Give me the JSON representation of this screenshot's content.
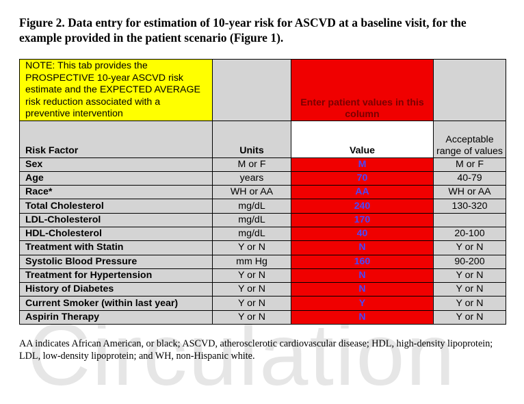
{
  "watermark": "Circulation",
  "caption": "Figure 2. Data entry for estimation of 10-year risk for ASCVD at a baseline visit, for the example provided in the patient scenario (Figure 1).",
  "table": {
    "note": "NOTE: This tab provides the PROSPECTIVE 10-year ASCVD risk estimate and the EXPECTED AVERAGE risk reduction associated with a preventive intervention",
    "enter_values": "Enter patient values in this column",
    "headers": {
      "risk_factor": "Risk Factor",
      "units": "Units",
      "value": "Value",
      "range": "Acceptable range of values"
    },
    "rows": [
      {
        "factor": "Sex",
        "units": "M or F",
        "value": "M",
        "range": "M or F"
      },
      {
        "factor": "Age",
        "units": "years",
        "value": "70",
        "range": "40-79"
      },
      {
        "factor": "Race*",
        "units": "WH or AA",
        "value": "AA",
        "range": "WH or AA"
      },
      {
        "factor": "Total Cholesterol",
        "units": "mg/dL",
        "value": "240",
        "range": "130-320"
      },
      {
        "factor": "LDL-Cholesterol",
        "units": "mg/dL",
        "value": "170",
        "range": ""
      },
      {
        "factor": "HDL-Cholesterol",
        "units": "mg/dL",
        "value": "40",
        "range": "20-100"
      },
      {
        "factor": "Treatment with Statin",
        "units": "Y or N",
        "value": "N",
        "range": "Y or N"
      },
      {
        "factor": "Systolic Blood Pressure",
        "units": "mm Hg",
        "value": "160",
        "range": "90-200"
      },
      {
        "factor": "Treatment for Hypertension",
        "units": "Y or N",
        "value": "N",
        "range": "Y or N"
      },
      {
        "factor": "History of Diabetes",
        "units": "Y or N",
        "value": "N",
        "range": "Y or N"
      },
      {
        "factor": "Current Smoker (within last year)",
        "units": "Y or N",
        "value": "Y",
        "range": "Y or N"
      },
      {
        "factor": "Aspirin Therapy",
        "units": "Y or N",
        "value": "N",
        "range": "Y or N"
      }
    ]
  },
  "footnote": "AA indicates African American, or black; ASCVD, atherosclerotic cardiovascular disease; HDL, high-density lipoprotein; LDL, low-density lipoprotein; and WH, non-Hispanic white.",
  "colors": {
    "input_column": "#f00000",
    "note_background": "#ffff00",
    "label_background": "#d4d4d4",
    "value_text": "#4848ff"
  }
}
